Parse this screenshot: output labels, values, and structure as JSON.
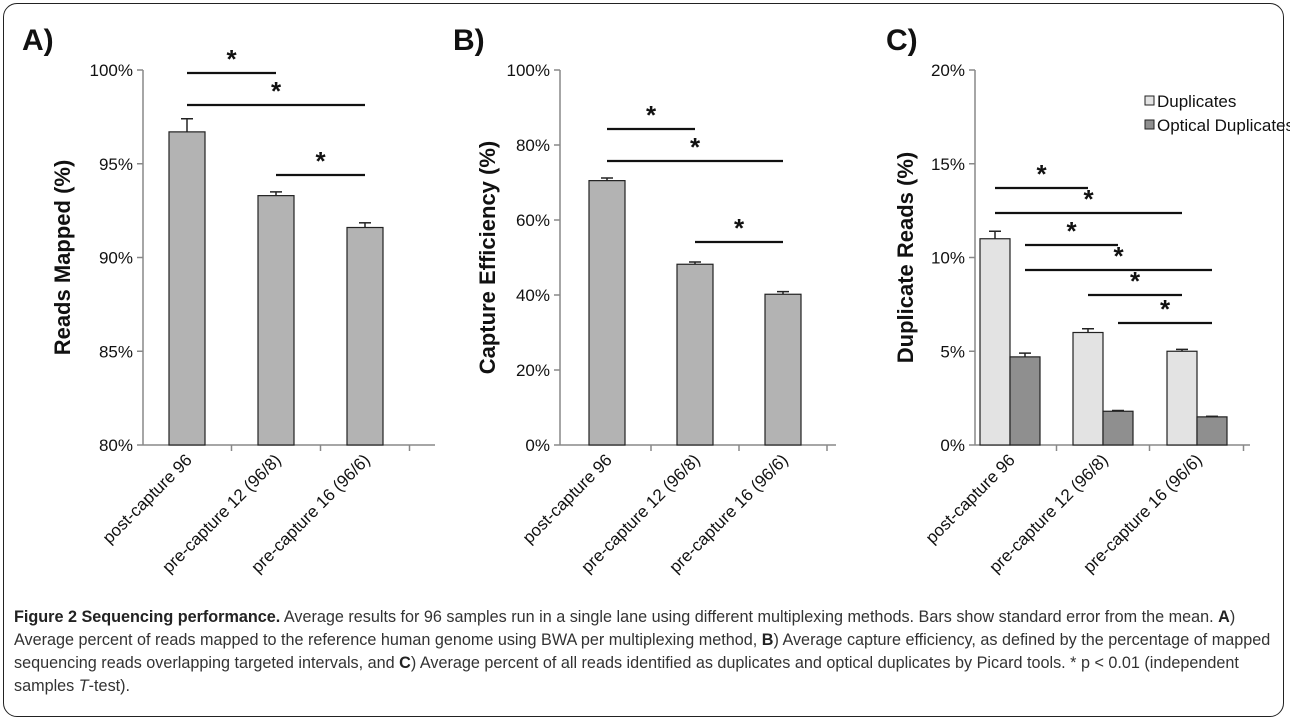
{
  "chart_data": [
    {
      "type": "bar",
      "panel_label": "A)",
      "categories": [
        "post-capture 96",
        "pre-capture 12 (96/8)",
        "pre-capture 16 (96/6)"
      ],
      "series": [
        {
          "values": [
            96.7,
            93.3,
            91.6
          ],
          "errors": [
            0.7,
            0.2,
            0.25
          ],
          "color": "#b3b3b3"
        }
      ],
      "ylabel": "Reads Mapped (%)",
      "ylim": [
        80,
        100
      ],
      "yticks": [
        80,
        85,
        90,
        95,
        100
      ],
      "ytick_labels": [
        "80%",
        "85%",
        "90%",
        "95%",
        "100%"
      ],
      "significance": [
        {
          "from": 0,
          "to": 1,
          "label": "*"
        },
        {
          "from": 0,
          "to": 2,
          "label": "*"
        },
        {
          "from": 1,
          "to": 2,
          "label": "*"
        }
      ]
    },
    {
      "type": "bar",
      "panel_label": "B)",
      "categories": [
        "post-capture 96",
        "pre-capture 12 (96/8)",
        "pre-capture 16 (96/6)"
      ],
      "series": [
        {
          "values": [
            70.5,
            48.2,
            40.2
          ],
          "errors": [
            0.7,
            0.6,
            0.7
          ],
          "color": "#b3b3b3"
        }
      ],
      "ylabel": "Capture Efficiency (%)",
      "ylim": [
        0,
        100
      ],
      "yticks": [
        0,
        20,
        40,
        60,
        80,
        100
      ],
      "ytick_labels": [
        "0%",
        "20%",
        "40%",
        "60%",
        "80%",
        "100%"
      ],
      "significance": [
        {
          "from": 0,
          "to": 1,
          "label": "*"
        },
        {
          "from": 0,
          "to": 2,
          "label": "*"
        },
        {
          "from": 1,
          "to": 2,
          "label": "*"
        }
      ]
    },
    {
      "type": "bar",
      "panel_label": "C)",
      "categories": [
        "post-capture 96",
        "pre-capture 12 (96/8)",
        "pre-capture 16 (96/6)"
      ],
      "series": [
        {
          "name": "Duplicates",
          "values": [
            11.0,
            6.0,
            5.0
          ],
          "errors": [
            0.4,
            0.2,
            0.1
          ],
          "color": "#e3e3e3"
        },
        {
          "name": "Optical Duplicates",
          "values": [
            4.7,
            1.8,
            1.5
          ],
          "errors": [
            0.2,
            0.04,
            0.03
          ],
          "color": "#8f8f8f"
        }
      ],
      "ylabel": "Duplicate Reads (%)",
      "ylim": [
        0,
        20
      ],
      "yticks": [
        0,
        5,
        10,
        15,
        20
      ],
      "ytick_labels": [
        "0%",
        "5%",
        "10%",
        "15%",
        "20%"
      ],
      "legend": "top-right",
      "significance": [
        {
          "from": [
            0,
            0
          ],
          "to": [
            1,
            0
          ],
          "label": "*"
        },
        {
          "from": [
            0,
            0
          ],
          "to": [
            2,
            0
          ],
          "label": "*"
        },
        {
          "from": [
            0,
            1
          ],
          "to": [
            1,
            1
          ],
          "label": "*"
        },
        {
          "from": [
            0,
            1
          ],
          "to": [
            2,
            1
          ],
          "label": "*"
        },
        {
          "from": [
            1,
            0
          ],
          "to": [
            2,
            0
          ],
          "label": "*"
        },
        {
          "from": [
            1,
            1
          ],
          "to": [
            2,
            1
          ],
          "label": "*"
        }
      ]
    }
  ],
  "caption": {
    "figure_label": "Figure 2 Sequencing performance.",
    "sentence_1": " Average results for 96 samples run in a single lane using different multiplexing methods. Bars show standard error from the mean. ",
    "ref_a": "A",
    "part_a": ") Average percent of reads mapped to the reference human genome using BWA per multiplexing method, ",
    "ref_b": "B",
    "part_b": ") Average capture efficiency, as defined by the percentage of mapped sequencing reads overlapping targeted intervals, and ",
    "ref_c": "C",
    "part_c": ") Average percent of all reads identified as duplicates and optical duplicates by Picard tools. * p < 0.01 (independent samples ",
    "test_name": "T",
    "part_end": "-test)."
  }
}
